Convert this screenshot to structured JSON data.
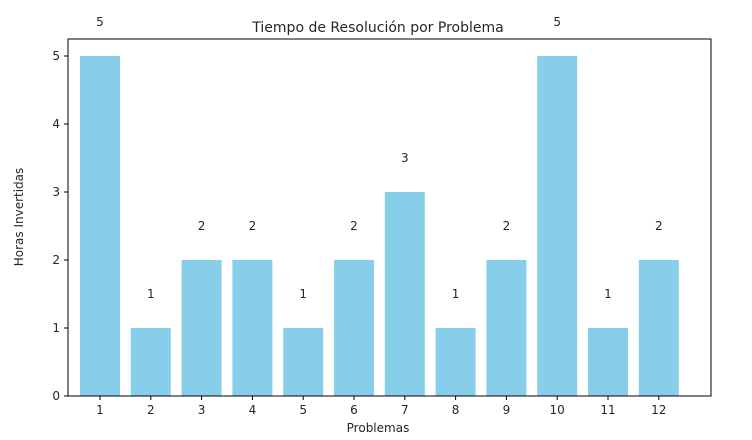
{
  "chart_data": {
    "type": "bar",
    "title": "Tiempo de Resolución por Problema",
    "xlabel": "Problemas",
    "ylabel": "Horas Invertidas",
    "categories": [
      "1",
      "2",
      "3",
      "4",
      "5",
      "6",
      "7",
      "8",
      "9",
      "10",
      "11",
      "12"
    ],
    "values": [
      5,
      1,
      2,
      2,
      1,
      2,
      3,
      1,
      2,
      5,
      1,
      2
    ],
    "data_labels": [
      "5",
      "1",
      "2",
      "2",
      "1",
      "2",
      "3",
      "1",
      "2",
      "5",
      "1",
      "2"
    ],
    "ylim": [
      0,
      5.25
    ],
    "yticks": [
      0,
      1,
      2,
      3,
      4,
      5
    ],
    "ytick_labels": [
      "0",
      "1",
      "2",
      "3",
      "4",
      "5"
    ],
    "bar_color": "#87ceeb",
    "grid": false,
    "legend": "none"
  }
}
